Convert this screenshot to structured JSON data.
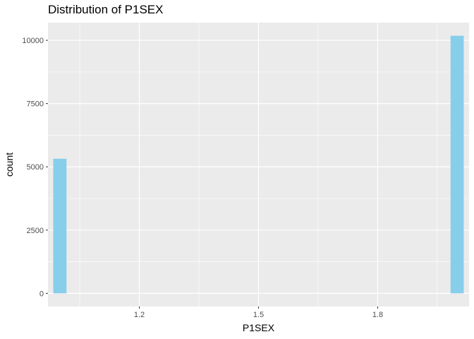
{
  "chart_data": {
    "type": "bar",
    "title": "Distribution of P1SEX",
    "xlabel": "P1SEX",
    "ylabel": "count",
    "xlim": [
      0.97,
      2.03
    ],
    "ylim": [
      -520,
      10700
    ],
    "x_ticks": [
      1.2,
      1.5,
      1.8
    ],
    "x_tick_labels": [
      "1.2",
      "1.5",
      "1.8"
    ],
    "y_ticks": [
      0,
      2500,
      5000,
      7500,
      10000
    ],
    "y_tick_labels": [
      "0",
      "2500",
      "5000",
      "7500",
      "10000"
    ],
    "bin_width": 0.0333,
    "bars": [
      {
        "x": 1.0,
        "value": 5320
      },
      {
        "x": 2.0,
        "value": 10180
      }
    ],
    "grid": true,
    "colors": {
      "bar": "#87CEEB",
      "panel": "#EBEBEB",
      "grid": "#FFFFFF"
    }
  }
}
